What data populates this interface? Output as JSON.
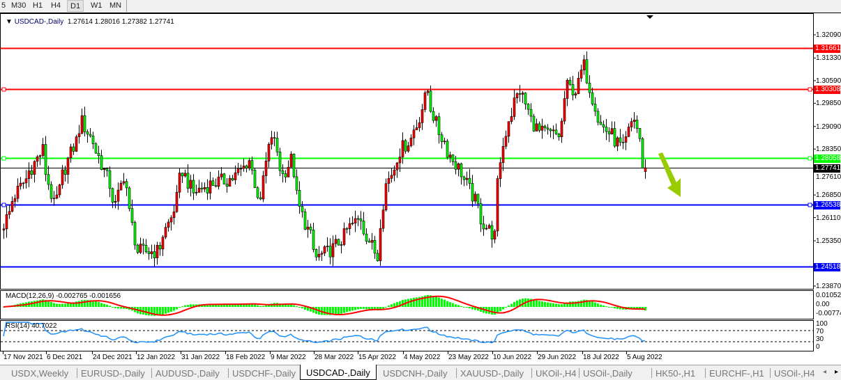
{
  "toolbar": {
    "timeframes": [
      "5",
      "M30",
      "H1",
      "H4",
      "D1",
      "W1",
      "MN"
    ],
    "active": "D1"
  },
  "header": {
    "symbol": "USDCAD-,Daily",
    "open": "1.27614",
    "high": "1.28016",
    "low": "1.27382",
    "close": "1.27741"
  },
  "price_axis": {
    "ticks": [
      "1.32090",
      "1.31330",
      "1.30590",
      "1.29850",
      "1.29090",
      "1.28350",
      "1.27610",
      "1.26850",
      "1.26110",
      "1.25350",
      "1.23870"
    ]
  },
  "levels": [
    {
      "value": "1.31661",
      "color": "#ff0000"
    },
    {
      "value": "1.30308",
      "color": "#ff0000"
    },
    {
      "value": "1.28058",
      "color": "#00ff00"
    },
    {
      "value": "1.27741",
      "color": "#000000"
    },
    {
      "value": "1.26538",
      "color": "#0000ff"
    },
    {
      "value": "1.24518",
      "color": "#0000ff"
    }
  ],
  "macd": {
    "label": "MACD(12,26,9) -0.002765 -0.001656",
    "ticks": [
      "0.01052",
      "0.00",
      "-0.00774"
    ],
    "hist_color": "#00ff00",
    "signal_color": "#ff0000"
  },
  "rsi": {
    "label": "RSI(14) 40.7022",
    "ticks": [
      "100",
      "70",
      "30",
      "0"
    ],
    "color": "#1e90ff"
  },
  "date_axis": [
    "17 Nov 2021",
    "6 Dec 2021",
    "24 Dec 2021",
    "12 Jan 2022",
    "31 Jan 2022",
    "18 Feb 2022",
    "9 Mar 2022",
    "28 Mar 2022",
    "15 Apr 2022",
    "4 May 2022",
    "23 May 2022",
    "10 Jun 2022",
    "29 Jun 2022",
    "18 Jul 2022",
    "5 Aug 2022"
  ],
  "tabs": [
    "USDX,Weekly",
    "EURUSD-,Daily",
    "AUDUSD-,Daily",
    "USDCHF-,Daily",
    "USDCAD-,Daily",
    "USDCNH-,Daily",
    "XAUUSD-,Daily",
    "UKOil-,H4",
    "USOil-,Daily",
    "HK50-,H1",
    "EURCHF-,H1",
    "USOil-,H4"
  ],
  "active_tab": "USDCAD-,Daily",
  "annotation": {
    "type": "arrow-down-right",
    "color": "#99cc00"
  },
  "chart_data": {
    "type": "candlestick",
    "up_color": "#ff0000",
    "down_color": "#00ff00",
    "ylim": [
      1.2387,
      1.3209
    ],
    "last_bar": {
      "open": 1.27614,
      "high": 1.28016,
      "low": 1.27382,
      "close": 1.27741
    },
    "closes": [
      [
        "2021-11-17",
        1.259
      ],
      [
        "2021-11-22",
        1.2685
      ],
      [
        "2021-11-29",
        1.2776
      ],
      [
        "2021-12-03",
        1.2833
      ],
      [
        "2021-12-08",
        1.265
      ],
      [
        "2021-12-14",
        1.28
      ],
      [
        "2021-12-20",
        1.2924
      ],
      [
        "2021-12-27",
        1.281
      ],
      [
        "2022-01-03",
        1.265
      ],
      [
        "2022-01-06",
        1.275
      ],
      [
        "2022-01-12",
        1.25
      ],
      [
        "2022-01-20",
        1.25
      ],
      [
        "2022-01-26",
        1.261
      ],
      [
        "2022-01-31",
        1.2765
      ],
      [
        "2022-02-04",
        1.269
      ],
      [
        "2022-02-11",
        1.272
      ],
      [
        "2022-02-21",
        1.274
      ],
      [
        "2022-02-28",
        1.28
      ],
      [
        "2022-03-04",
        1.265
      ],
      [
        "2022-03-09",
        1.288
      ],
      [
        "2022-03-14",
        1.275
      ],
      [
        "2022-03-17",
        1.28
      ],
      [
        "2022-03-21",
        1.264
      ],
      [
        "2022-03-28",
        1.248
      ],
      [
        "2022-04-04",
        1.251
      ],
      [
        "2022-04-11",
        1.258
      ],
      [
        "2022-04-15",
        1.261
      ],
      [
        "2022-04-22",
        1.248
      ],
      [
        "2022-04-26",
        1.272
      ],
      [
        "2022-05-02",
        1.283
      ],
      [
        "2022-05-06",
        1.287
      ],
      [
        "2022-05-09",
        1.2913
      ],
      [
        "2022-05-13",
        1.3027
      ],
      [
        "2022-05-18",
        1.289
      ],
      [
        "2022-05-24",
        1.28
      ],
      [
        "2022-05-30",
        1.272
      ],
      [
        "2022-06-06",
        1.259
      ],
      [
        "2022-06-10",
        1.255
      ],
      [
        "2022-06-13",
        1.28
      ],
      [
        "2022-06-16",
        1.2936
      ],
      [
        "2022-06-21",
        1.3027
      ],
      [
        "2022-06-24",
        1.2959
      ],
      [
        "2022-06-29",
        1.289
      ],
      [
        "2022-07-07",
        1.288
      ],
      [
        "2022-07-11",
        1.304
      ],
      [
        "2022-07-14",
        1.3027
      ],
      [
        "2022-07-18",
        1.3107
      ],
      [
        "2022-07-21",
        1.3004
      ],
      [
        "2022-07-25",
        1.2913
      ],
      [
        "2022-08-01",
        1.2856
      ],
      [
        "2022-08-03",
        1.2833
      ],
      [
        "2022-08-05",
        1.289
      ],
      [
        "2022-08-08",
        1.2936
      ],
      [
        "2022-08-10",
        1.287
      ],
      [
        "2022-08-11",
        1.2761
      ],
      [
        "2022-08-12",
        1.27741
      ]
    ]
  }
}
